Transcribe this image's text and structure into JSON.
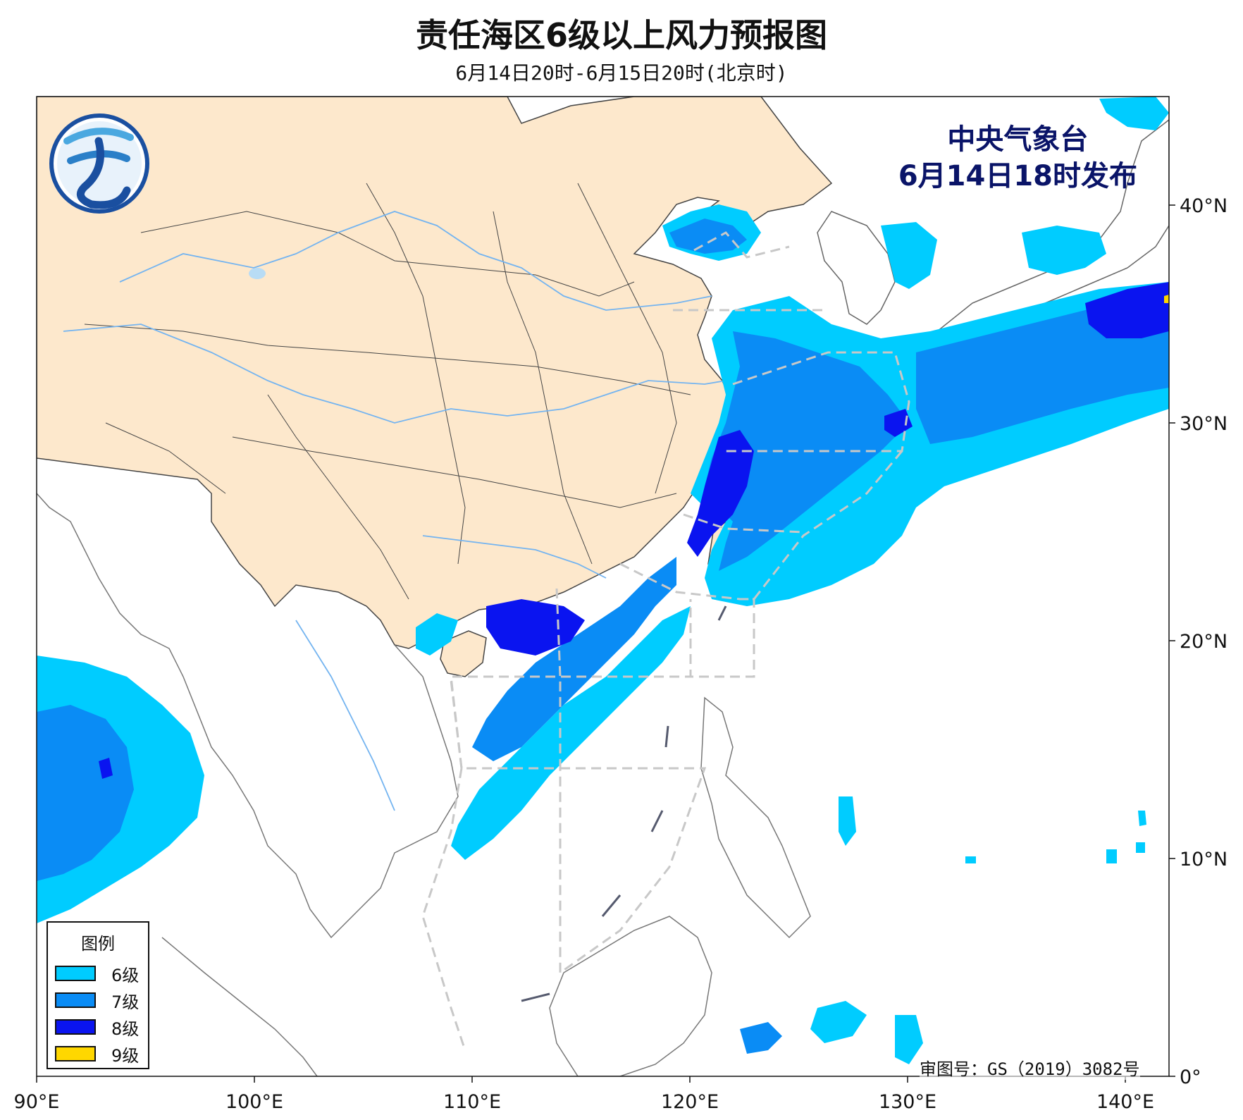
{
  "header": {
    "title": "责任海区6级以上风力预报图",
    "subtitle": "6月14日20时-6月15日20时(北京时)"
  },
  "issuer": {
    "name": "中央气象台",
    "time": "6月14日18时发布"
  },
  "approval_no": "审图号：GS（2019）3082号",
  "legend": {
    "title": "图例",
    "items": [
      {
        "label": "6级",
        "color": "#00ccff"
      },
      {
        "label": "7级",
        "color": "#0a8cf5"
      },
      {
        "label": "8级",
        "color": "#0a14f0"
      },
      {
        "label": "9级",
        "color": "#ffd700"
      }
    ]
  },
  "axes": {
    "x_ticks": [
      "90°E",
      "100°E",
      "110°E",
      "120°E",
      "130°E",
      "140°E"
    ],
    "y_ticks": [
      "0°",
      "10°N",
      "20°N",
      "30°N",
      "40°N"
    ],
    "lon_range": [
      90,
      142
    ],
    "lat_range": [
      0,
      45
    ]
  },
  "colors": {
    "land_china": "#fde8cc",
    "sea": "#ffffff",
    "boundary": "#555555",
    "river": "#74b4f0",
    "sea_area_lines": "#c8c8c8",
    "logo": "#1a4fa0"
  }
}
